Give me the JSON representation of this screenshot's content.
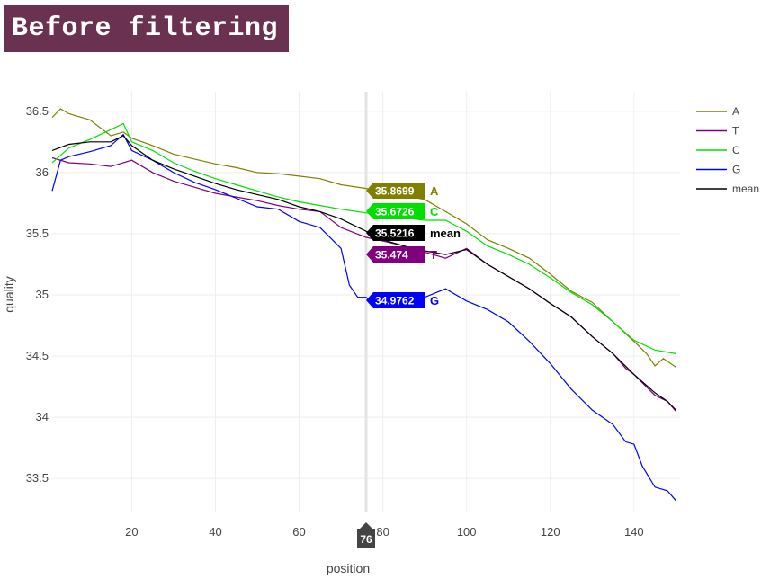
{
  "banner": {
    "title": "Before filtering"
  },
  "chart_data": {
    "type": "line",
    "title": "",
    "xlabel": "position",
    "ylabel": "quality",
    "xlim": [
      1,
      151
    ],
    "ylim": [
      33.23,
      36.66
    ],
    "xticks": [
      20,
      40,
      60,
      80,
      100,
      120,
      140
    ],
    "yticks": [
      33.5,
      34,
      34.5,
      35,
      35.5,
      36,
      36.5
    ],
    "grid": true,
    "legend_position": "top-right",
    "hover": {
      "x": 76,
      "labels": [
        {
          "series": "A",
          "value": "35.8699"
        },
        {
          "series": "C",
          "value": "35.6726"
        },
        {
          "series": "mean",
          "value": "35.5216"
        },
        {
          "series": "T",
          "value": "35.474"
        },
        {
          "series": "G",
          "value": "34.9762"
        }
      ]
    },
    "series": [
      {
        "name": "A",
        "color": "#808000",
        "points": [
          [
            1,
            36.45
          ],
          [
            3,
            36.52
          ],
          [
            5,
            36.48
          ],
          [
            10,
            36.43
          ],
          [
            15,
            36.3
          ],
          [
            18,
            36.33
          ],
          [
            20,
            36.28
          ],
          [
            25,
            36.22
          ],
          [
            30,
            36.15
          ],
          [
            35,
            36.11
          ],
          [
            40,
            36.07
          ],
          [
            45,
            36.04
          ],
          [
            50,
            36.0
          ],
          [
            55,
            35.99
          ],
          [
            60,
            35.97
          ],
          [
            65,
            35.95
          ],
          [
            70,
            35.9
          ],
          [
            76,
            35.87
          ],
          [
            80,
            35.84
          ],
          [
            85,
            35.81
          ],
          [
            90,
            35.78
          ],
          [
            95,
            35.68
          ],
          [
            100,
            35.58
          ],
          [
            105,
            35.45
          ],
          [
            110,
            35.38
          ],
          [
            115,
            35.3
          ],
          [
            120,
            35.17
          ],
          [
            125,
            35.03
          ],
          [
            130,
            34.94
          ],
          [
            135,
            34.78
          ],
          [
            140,
            34.62
          ],
          [
            143,
            34.52
          ],
          [
            145,
            34.42
          ],
          [
            147,
            34.48
          ],
          [
            150,
            34.41
          ]
        ]
      },
      {
        "name": "T",
        "color": "#800080",
        "points": [
          [
            1,
            36.12
          ],
          [
            5,
            36.08
          ],
          [
            10,
            36.07
          ],
          [
            15,
            36.05
          ],
          [
            20,
            36.1
          ],
          [
            25,
            36.0
          ],
          [
            30,
            35.93
          ],
          [
            35,
            35.88
          ],
          [
            40,
            35.83
          ],
          [
            45,
            35.8
          ],
          [
            50,
            35.77
          ],
          [
            55,
            35.73
          ],
          [
            60,
            35.7
          ],
          [
            65,
            35.68
          ],
          [
            70,
            35.55
          ],
          [
            76,
            35.47
          ],
          [
            80,
            35.44
          ],
          [
            85,
            35.4
          ],
          [
            90,
            35.35
          ],
          [
            95,
            35.3
          ],
          [
            100,
            35.38
          ],
          [
            105,
            35.25
          ],
          [
            110,
            35.15
          ],
          [
            115,
            35.05
          ],
          [
            120,
            34.93
          ],
          [
            125,
            34.82
          ],
          [
            130,
            34.66
          ],
          [
            135,
            34.52
          ],
          [
            138,
            34.4
          ],
          [
            140,
            34.35
          ],
          [
            145,
            34.18
          ],
          [
            148,
            34.13
          ],
          [
            150,
            34.05
          ]
        ]
      },
      {
        "name": "C",
        "color": "#00e000",
        "points": [
          [
            1,
            36.08
          ],
          [
            5,
            36.2
          ],
          [
            10,
            36.27
          ],
          [
            15,
            36.35
          ],
          [
            18,
            36.4
          ],
          [
            20,
            36.25
          ],
          [
            25,
            36.18
          ],
          [
            30,
            36.08
          ],
          [
            35,
            36.01
          ],
          [
            40,
            35.95
          ],
          [
            45,
            35.9
          ],
          [
            50,
            35.85
          ],
          [
            55,
            35.8
          ],
          [
            60,
            35.76
          ],
          [
            65,
            35.73
          ],
          [
            70,
            35.7
          ],
          [
            76,
            35.67
          ],
          [
            80,
            35.66
          ],
          [
            85,
            35.63
          ],
          [
            90,
            35.61
          ],
          [
            95,
            35.61
          ],
          [
            100,
            35.52
          ],
          [
            105,
            35.4
          ],
          [
            110,
            35.33
          ],
          [
            115,
            35.25
          ],
          [
            120,
            35.14
          ],
          [
            125,
            35.02
          ],
          [
            130,
            34.92
          ],
          [
            135,
            34.78
          ],
          [
            140,
            34.63
          ],
          [
            145,
            34.55
          ],
          [
            150,
            34.52
          ]
        ]
      },
      {
        "name": "G",
        "color": "#0000ff",
        "points": [
          [
            1,
            35.85
          ],
          [
            3,
            36.1
          ],
          [
            5,
            36.13
          ],
          [
            10,
            36.17
          ],
          [
            15,
            36.22
          ],
          [
            18,
            36.31
          ],
          [
            20,
            36.18
          ],
          [
            25,
            36.1
          ],
          [
            30,
            36.0
          ],
          [
            35,
            35.92
          ],
          [
            40,
            35.86
          ],
          [
            45,
            35.79
          ],
          [
            50,
            35.72
          ],
          [
            55,
            35.7
          ],
          [
            60,
            35.6
          ],
          [
            65,
            35.55
          ],
          [
            70,
            35.38
          ],
          [
            72,
            35.08
          ],
          [
            74,
            34.98
          ],
          [
            76,
            34.98
          ],
          [
            78,
            34.92
          ],
          [
            80,
            35.0
          ],
          [
            85,
            34.96
          ],
          [
            90,
            34.98
          ],
          [
            95,
            35.05
          ],
          [
            100,
            34.95
          ],
          [
            105,
            34.88
          ],
          [
            110,
            34.78
          ],
          [
            115,
            34.62
          ],
          [
            120,
            34.44
          ],
          [
            125,
            34.23
          ],
          [
            130,
            34.06
          ],
          [
            135,
            33.94
          ],
          [
            138,
            33.8
          ],
          [
            140,
            33.78
          ],
          [
            142,
            33.6
          ],
          [
            145,
            33.43
          ],
          [
            148,
            33.4
          ],
          [
            150,
            33.32
          ]
        ]
      },
      {
        "name": "mean",
        "color": "#000000",
        "points": [
          [
            1,
            36.18
          ],
          [
            5,
            36.23
          ],
          [
            10,
            36.25
          ],
          [
            15,
            36.25
          ],
          [
            18,
            36.3
          ],
          [
            20,
            36.22
          ],
          [
            25,
            36.1
          ],
          [
            30,
            36.03
          ],
          [
            35,
            35.97
          ],
          [
            40,
            35.91
          ],
          [
            45,
            35.86
          ],
          [
            50,
            35.82
          ],
          [
            55,
            35.78
          ],
          [
            60,
            35.72
          ],
          [
            65,
            35.68
          ],
          [
            70,
            35.62
          ],
          [
            76,
            35.52
          ],
          [
            80,
            35.45
          ],
          [
            85,
            35.4
          ],
          [
            90,
            35.36
          ],
          [
            95,
            35.33
          ],
          [
            100,
            35.37
          ],
          [
            105,
            35.25
          ],
          [
            110,
            35.15
          ],
          [
            115,
            35.05
          ],
          [
            120,
            34.93
          ],
          [
            125,
            34.82
          ],
          [
            130,
            34.66
          ],
          [
            135,
            34.52
          ],
          [
            140,
            34.35
          ],
          [
            145,
            34.2
          ],
          [
            148,
            34.13
          ],
          [
            150,
            34.06
          ]
        ]
      }
    ]
  }
}
